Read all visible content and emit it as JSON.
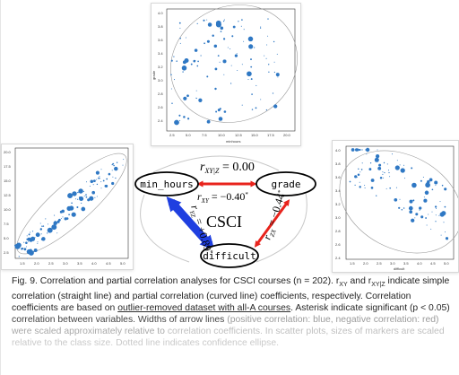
{
  "plots": {
    "top": {
      "xlabel": "minhours",
      "ylabel": "grade",
      "xticks": [
        "2.5",
        "5.0",
        "7.5",
        "10.0",
        "12.5",
        "15.0",
        "17.5",
        "20.0"
      ],
      "yticks": [
        "4.0",
        "3.8",
        "3.6",
        "3.4",
        "3.2",
        "3.0",
        "2.8",
        "2.6",
        "2.4"
      ]
    },
    "left": {
      "xticks": [
        "1.5",
        "2.0",
        "2.5",
        "3.0",
        "3.5",
        "4.0",
        "4.5",
        "5.0"
      ],
      "yticks": [
        "20.0",
        "17.5",
        "15.0",
        "12.5",
        "10.0",
        "7.5",
        "5.0",
        "2.5"
      ]
    },
    "right": {
      "xlabel": "difficult",
      "xticks": [
        "1.5",
        "2.0",
        "2.5",
        "3.0",
        "3.5",
        "4.0",
        "4.5",
        "5.0"
      ],
      "yticks": [
        "4.0",
        "3.8",
        "3.6",
        "3.4",
        "3.2",
        "3.0",
        "2.8",
        "2.6",
        "2.4"
      ]
    }
  },
  "diagram": {
    "nodes": {
      "min_hours": "min_hours",
      "grade": "grade",
      "difficult": "difficult"
    },
    "center": "CSCI",
    "partial": "r",
    "partial_sub": "XY|Z",
    "partial_val": " = 0.00",
    "xy_label": "r",
    "xy_sub": "XY",
    "xy_val": " = −0.40",
    "xy_star": "*",
    "zx_label": "r",
    "zx_sub": "ZX",
    "zx_val": " = −0.44",
    "zx_star": "*",
    "yz_label": "r",
    "yz_sub": "YZ",
    "yz_val": " = +0.89",
    "yz_star": "*",
    "colors": {
      "positive": "#1f3fe0",
      "negative": "#e8231c"
    }
  },
  "caption": {
    "p1": "Fig. 9. Correlation and partial correlation analyses for CSCI courses (n = 202). r",
    "p1_sub": "XY",
    "p2": " and r",
    "p2_sub": "XY|Z",
    "p3": " indicate simple correlation (straight line) and partial correlation (curved line) coefficients, respectively. Correlation coefficients are based on ",
    "p3_u": "outlier-removed dataset with all-A courses",
    "p4": ". Asterisk indicate significant (p < 0.05) correlation between variables. Widths of arrow lines ",
    "p5_light": "(positive correlation: blue, negative correlation: red) were scaled approximately relative to",
    "p6_lighter": "correlation coefficients. In scatter plots, sizes of markers are scaled relative to the class size. Dotted line indicates confidence ellipse."
  }
}
